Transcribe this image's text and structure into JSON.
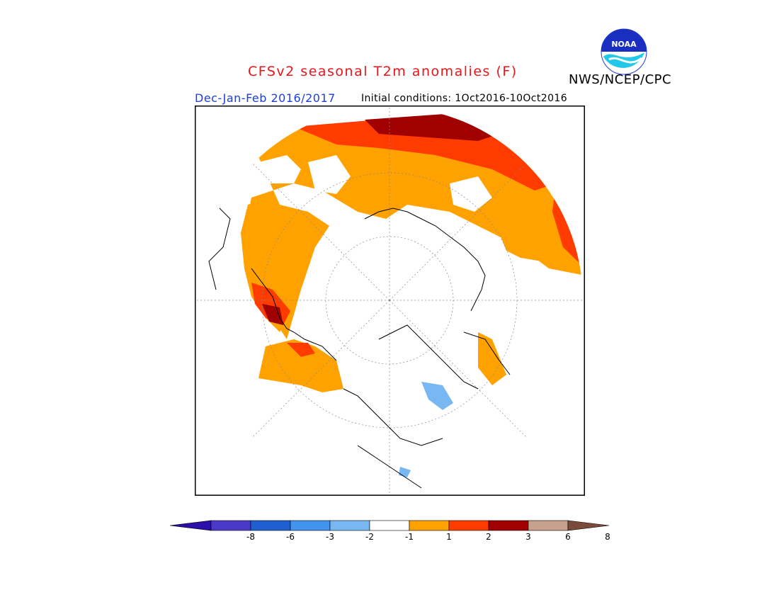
{
  "title": "CFSv2 seasonal T2m anomalies (F)",
  "season": "Dec-Jan-Feb 2016/2017",
  "initial_conditions": "Initial conditions: 1Oct2016-10Oct2016",
  "agency": "NWS/NCEP/CPC",
  "logo_text": "NOAA",
  "legend": {
    "ticks": [
      "-8",
      "-6",
      "-3",
      "-2",
      "-1",
      "1",
      "2",
      "3",
      "6",
      "8"
    ],
    "colors": [
      "#2b0fa8",
      "#4a39c9",
      "#1f5fd0",
      "#4193ee",
      "#79b7f3",
      "#ffffff",
      "#ffa200",
      "#ff3b00",
      "#a00000",
      "#c8a08e",
      "#7a4a3a"
    ]
  },
  "map": {
    "projection": "north polar stereographic",
    "field": "2m temperature anomaly (F)"
  }
}
